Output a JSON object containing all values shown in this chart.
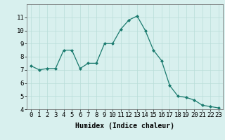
{
  "x": [
    0,
    1,
    2,
    3,
    4,
    5,
    6,
    7,
    8,
    9,
    10,
    11,
    12,
    13,
    14,
    15,
    16,
    17,
    18,
    19,
    20,
    21,
    22,
    23
  ],
  "y": [
    7.3,
    7.0,
    7.1,
    7.1,
    8.5,
    8.5,
    7.1,
    7.5,
    7.5,
    9.0,
    9.0,
    10.1,
    10.8,
    11.1,
    10.0,
    8.5,
    7.7,
    5.8,
    5.0,
    4.9,
    4.7,
    4.3,
    4.2,
    4.1
  ],
  "xlabel": "Humidex (Indice chaleur)",
  "ylim": [
    4,
    12
  ],
  "xlim": [
    -0.5,
    23.5
  ],
  "yticks": [
    4,
    5,
    6,
    7,
    8,
    9,
    10,
    11
  ],
  "xticks": [
    0,
    1,
    2,
    3,
    4,
    5,
    6,
    7,
    8,
    9,
    10,
    11,
    12,
    13,
    14,
    15,
    16,
    17,
    18,
    19,
    20,
    21,
    22,
    23
  ],
  "line_color": "#1a7a6e",
  "marker": "D",
  "marker_size": 2.0,
  "bg_color": "#d8f0ee",
  "grid_color": "#b8ddd8",
  "axis_label_fontsize": 7,
  "tick_fontsize": 6.5
}
